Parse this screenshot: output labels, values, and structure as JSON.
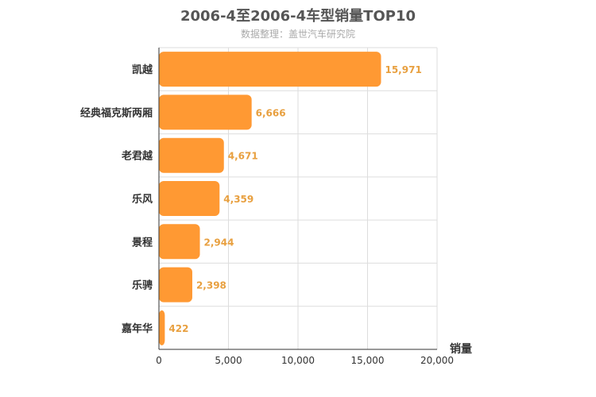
{
  "chart_data": {
    "type": "bar",
    "orientation": "horizontal",
    "title": "2006-4至2006-4车型销量TOP10",
    "subtitle": "数据整理：盖世汽车研究院",
    "xlabel": "销量",
    "ylabel": "",
    "xlim": [
      0,
      20000
    ],
    "xticks": [
      0,
      5000,
      10000,
      15000,
      20000
    ],
    "xtick_labels": [
      "0",
      "5,000",
      "10,000",
      "15,000",
      "20,000"
    ],
    "grid": true,
    "categories": [
      "凯越",
      "经典福克斯两厢",
      "老君越",
      "乐风",
      "景程",
      "乐骋",
      "嘉年华"
    ],
    "values": [
      15971,
      6666,
      4671,
      4359,
      2944,
      2398,
      422
    ],
    "value_labels": [
      "15,971",
      "6,666",
      "4,671",
      "4,359",
      "2,944",
      "2,398",
      "422"
    ],
    "colors": {
      "bar": "#ff9933",
      "value_label": "#e8a040",
      "grid": "#dddddd",
      "axis": "#333333",
      "category_text": "#333333"
    }
  }
}
